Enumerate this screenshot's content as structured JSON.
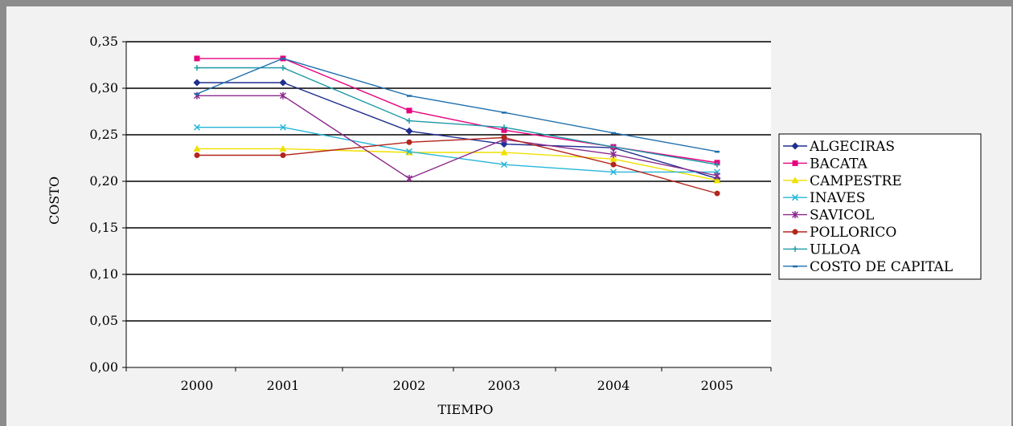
{
  "chart_data": {
    "type": "line",
    "title": "",
    "xlabel": "TIEMPO",
    "ylabel": "COSTO",
    "categories": [
      "2000",
      "2001",
      "2002",
      "2003",
      "2004",
      "2005"
    ],
    "ylim": [
      0,
      0.35
    ],
    "yticks": [
      "0,00",
      "0,05",
      "0,10",
      "0,15",
      "0,20",
      "0,25",
      "0,30",
      "0,35"
    ],
    "grid": "horizontal",
    "legend_position": "right",
    "series": [
      {
        "name": "ALGECIRAS",
        "color": "#1f2f8f",
        "marker": "diamond",
        "values": [
          0.306,
          0.306,
          0.254,
          0.24,
          0.236,
          0.203
        ]
      },
      {
        "name": "BACATA",
        "color": "#e6007e",
        "marker": "square",
        "values": [
          0.332,
          0.332,
          0.276,
          0.255,
          0.237,
          0.22
        ]
      },
      {
        "name": "CAMPESTRE",
        "color": "#f0e000",
        "marker": "triangle",
        "values": [
          0.235,
          0.235,
          0.231,
          0.231,
          0.224,
          0.201
        ]
      },
      {
        "name": "INAVES",
        "color": "#26b5d9",
        "marker": "x",
        "values": [
          0.258,
          0.258,
          0.232,
          0.218,
          0.21,
          0.21
        ]
      },
      {
        "name": "SAVICOL",
        "color": "#8c2a8c",
        "marker": "star",
        "values": [
          0.292,
          0.292,
          0.203,
          0.245,
          0.229,
          0.206
        ]
      },
      {
        "name": "POLLORICO",
        "color": "#b3261e",
        "marker": "circle",
        "values": [
          0.228,
          0.228,
          0.242,
          0.247,
          0.218,
          0.187
        ]
      },
      {
        "name": "ULLOA",
        "color": "#1e9aa6",
        "marker": "plus",
        "values": [
          0.322,
          0.322,
          0.265,
          0.258,
          0.237,
          0.218
        ]
      },
      {
        "name": "COSTO DE CAPITAL",
        "color": "#1f6fae",
        "marker": "dash",
        "values": [
          0.294,
          0.332,
          0.292,
          0.274,
          0.252,
          0.232
        ]
      }
    ]
  }
}
